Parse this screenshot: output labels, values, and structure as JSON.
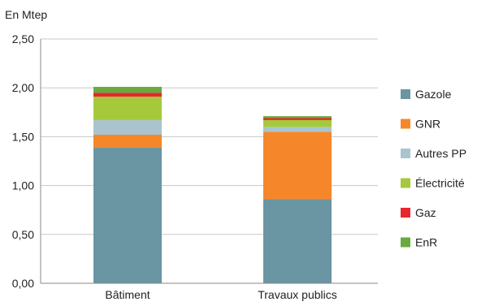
{
  "chart_data": {
    "type": "bar",
    "stacked": true,
    "ylabel": "En Mtep",
    "categories": [
      "Bâtiment",
      "Travaux publics"
    ],
    "ylim": [
      0,
      2.5
    ],
    "yticks": [
      "0,00",
      "0,50",
      "1,00",
      "1,50",
      "2,00",
      "2,50"
    ],
    "grid": true,
    "legend_position": "right",
    "series": [
      {
        "name": "Gazole",
        "color": "#6a95a3",
        "values": [
          1.39,
          0.86
        ]
      },
      {
        "name": "GNR",
        "color": "#f5872a",
        "values": [
          0.13,
          0.69
        ]
      },
      {
        "name": "Autres PP",
        "color": "#a9c4cf",
        "values": [
          0.15,
          0.05
        ]
      },
      {
        "name": "Électricité",
        "color": "#a5c93b",
        "values": [
          0.24,
          0.07
        ]
      },
      {
        "name": "Gaz",
        "color": "#e8262d",
        "values": [
          0.04,
          0.02
        ]
      },
      {
        "name": "EnR",
        "color": "#69ab3d",
        "values": [
          0.06,
          0.02
        ]
      }
    ]
  }
}
